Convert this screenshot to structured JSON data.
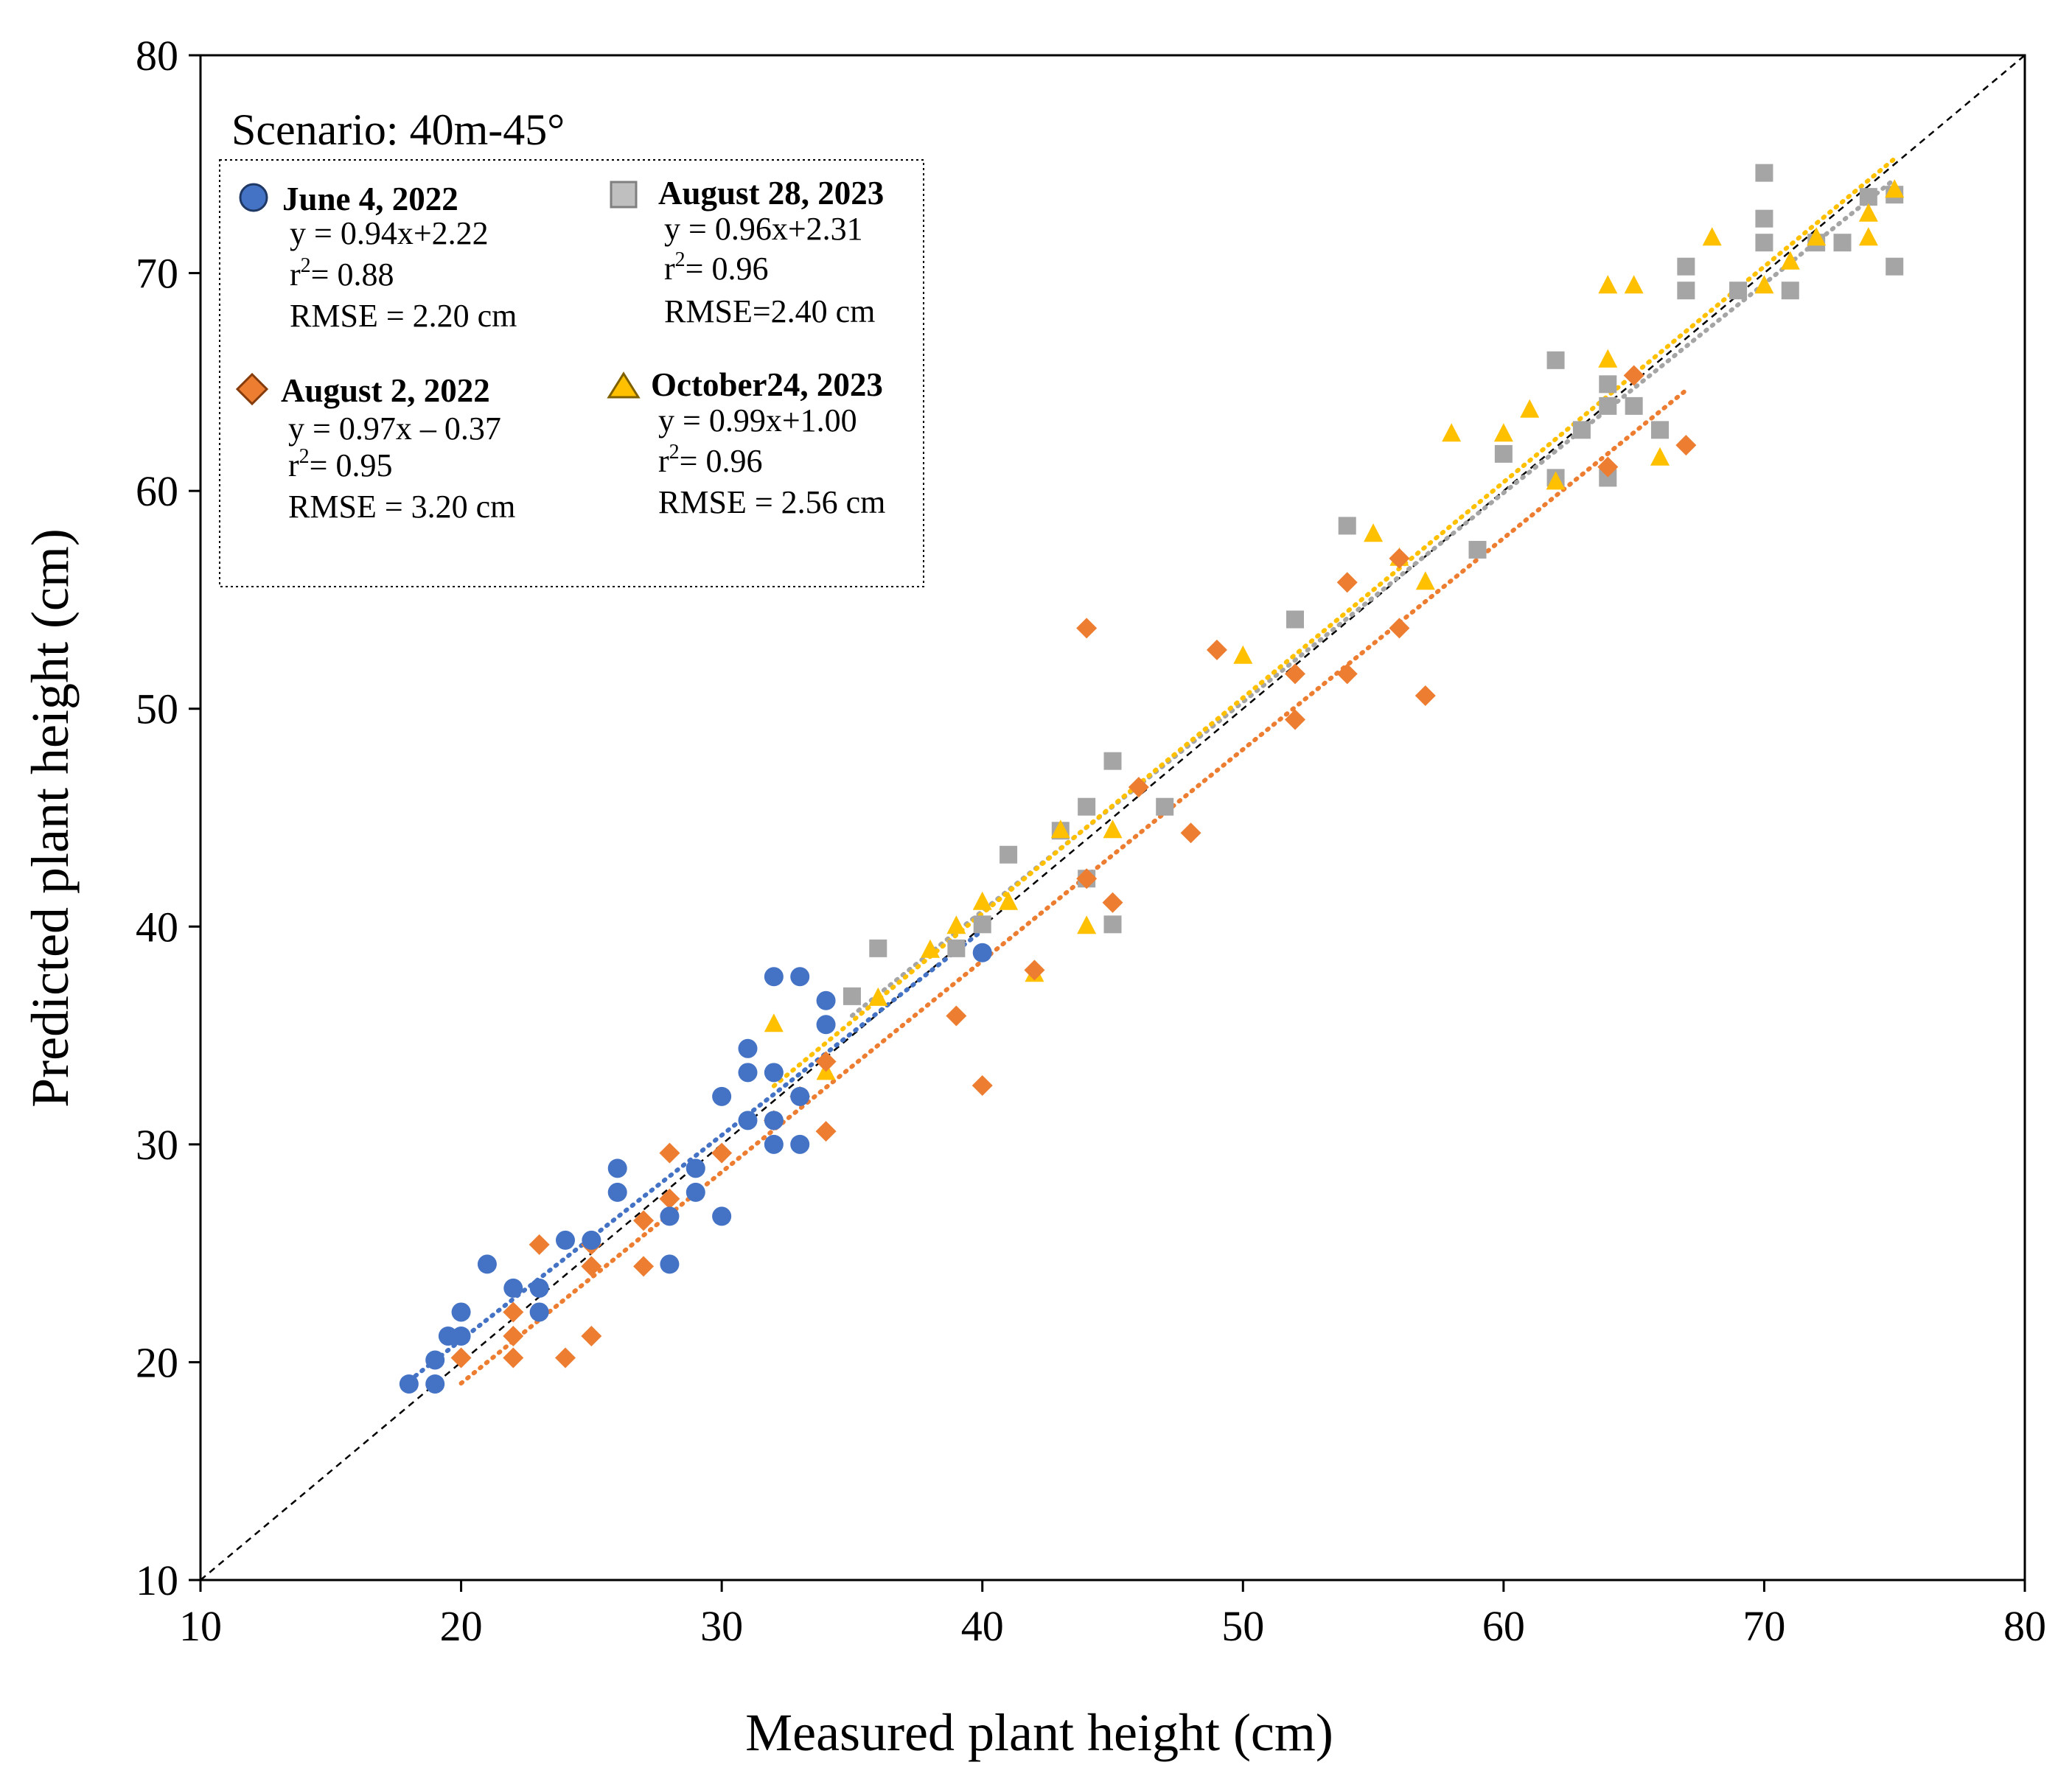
{
  "chart_data": {
    "type": "scatter",
    "title": "",
    "scenario": "Scenario: 40m-45°",
    "xlabel": "Measured plant height (cm)",
    "ylabel": "Predicted plant height (cm)",
    "xlim": [
      10,
      80
    ],
    "ylim": [
      10,
      80
    ],
    "xticks": [
      "10",
      "20",
      "30",
      "40",
      "50",
      "60",
      "70",
      "80"
    ],
    "yticks": [
      "10",
      "20",
      "30",
      "40",
      "50",
      "60",
      "70",
      "80"
    ],
    "grid": false,
    "reference_line": {
      "name": "1:1 line",
      "x": [
        10,
        80
      ],
      "y": [
        10,
        80
      ],
      "color": "#000000"
    },
    "series": [
      {
        "name": "June 4, 2022",
        "marker": "circle",
        "color": "#4472C4",
        "equation": "y = 0.94x+2.22",
        "r2_label": "r",
        "r2_value": "= 0.88",
        "rmse": "RMSE = 2.20 cm",
        "fit": {
          "slope": 0.94,
          "intercept": 2.22,
          "x_range": [
            18,
            40
          ]
        },
        "points": [
          [
            18,
            19
          ],
          [
            19,
            19
          ],
          [
            19,
            20.1
          ],
          [
            19.5,
            21.2
          ],
          [
            20,
            21.2
          ],
          [
            20,
            22.3
          ],
          [
            21,
            24.5
          ],
          [
            22,
            23.4
          ],
          [
            23,
            23.4
          ],
          [
            23,
            22.3
          ],
          [
            24,
            25.6
          ],
          [
            25,
            25.6
          ],
          [
            26,
            27.8
          ],
          [
            26,
            28.9
          ],
          [
            28,
            24.5
          ],
          [
            28,
            26.7
          ],
          [
            29,
            27.8
          ],
          [
            29,
            28.9
          ],
          [
            30,
            26.7
          ],
          [
            30,
            32.2
          ],
          [
            31,
            31.1
          ],
          [
            31,
            33.3
          ],
          [
            31,
            34.4
          ],
          [
            32,
            30
          ],
          [
            32,
            31.1
          ],
          [
            32,
            33.3
          ],
          [
            32,
            37.7
          ],
          [
            33,
            30
          ],
          [
            33,
            32.2
          ],
          [
            33,
            37.7
          ],
          [
            34,
            35.5
          ],
          [
            34,
            36.6
          ],
          [
            40,
            38.8
          ]
        ]
      },
      {
        "name": "August 2, 2022",
        "marker": "diamond",
        "color": "#ED7D31",
        "equation": "y = 0.97x – 0.37",
        "r2_label": "r",
        "r2_value": "= 0.95",
        "rmse": "RMSE = 3.20 cm",
        "fit": {
          "slope": 0.97,
          "intercept": -0.37,
          "x_range": [
            20,
            67
          ]
        },
        "points": [
          [
            20,
            20.2
          ],
          [
            22,
            20.2
          ],
          [
            22,
            21.2
          ],
          [
            22,
            22.3
          ],
          [
            23,
            25.4
          ],
          [
            24,
            20.2
          ],
          [
            25,
            21.2
          ],
          [
            25,
            24.4
          ],
          [
            25,
            25.4
          ],
          [
            27,
            24.4
          ],
          [
            27,
            26.5
          ],
          [
            28,
            27.5
          ],
          [
            28,
            29.6
          ],
          [
            30,
            29.6
          ],
          [
            32,
            31.1
          ],
          [
            33,
            32.2
          ],
          [
            34,
            30.6
          ],
          [
            34,
            33.8
          ],
          [
            39,
            35.9
          ],
          [
            40,
            32.7
          ],
          [
            42,
            38
          ],
          [
            44,
            42.2
          ],
          [
            44,
            53.7
          ],
          [
            45,
            41.1
          ],
          [
            46,
            46.4
          ],
          [
            48,
            44.3
          ],
          [
            49,
            52.7
          ],
          [
            52,
            49.5
          ],
          [
            52,
            51.6
          ],
          [
            54,
            51.6
          ],
          [
            54,
            55.8
          ],
          [
            56,
            53.7
          ],
          [
            56,
            56.9
          ],
          [
            57,
            50.6
          ],
          [
            64,
            61.1
          ],
          [
            65,
            65.3
          ],
          [
            67,
            62.1
          ]
        ]
      },
      {
        "name": "August 28, 2023",
        "marker": "square",
        "color": "#A5A5A5",
        "equation": "y = 0.96x+2.31",
        "r2_label": "r",
        "r2_value": "= 0.96",
        "rmse": "RMSE=2.40 cm",
        "fit": {
          "slope": 0.96,
          "intercept": 2.31,
          "x_range": [
            35,
            75
          ]
        },
        "points": [
          [
            35,
            36.8
          ],
          [
            36,
            39
          ],
          [
            39,
            39
          ],
          [
            40,
            40.1
          ],
          [
            41,
            43.3
          ],
          [
            43,
            44.4
          ],
          [
            44,
            42.2
          ],
          [
            44,
            45.5
          ],
          [
            45,
            40.1
          ],
          [
            45,
            47.6
          ],
          [
            47,
            45.5
          ],
          [
            52,
            54.1
          ],
          [
            54,
            58.4
          ],
          [
            59,
            57.3
          ],
          [
            60,
            61.7
          ],
          [
            62,
            60.6
          ],
          [
            62,
            66
          ],
          [
            63,
            62.8
          ],
          [
            64,
            60.6
          ],
          [
            64,
            63.9
          ],
          [
            64,
            64.9
          ],
          [
            65,
            63.9
          ],
          [
            66,
            62.8
          ],
          [
            67,
            69.2
          ],
          [
            67,
            70.3
          ],
          [
            69,
            69.2
          ],
          [
            70,
            71.4
          ],
          [
            70,
            72.5
          ],
          [
            70,
            74.6
          ],
          [
            71,
            69.2
          ],
          [
            72,
            71.4
          ],
          [
            73,
            71.4
          ],
          [
            74,
            73.5
          ],
          [
            75,
            70.3
          ],
          [
            75,
            73.6
          ]
        ]
      },
      {
        "name": "October24, 2023",
        "marker": "triangle",
        "color": "#FFC000",
        "equation": "y = 0.99x+1.00",
        "r2_label": "r",
        "r2_value": "= 0.96",
        "rmse": "RMSE = 2.56 cm",
        "fit": {
          "slope": 0.99,
          "intercept": 1.0,
          "x_range": [
            32,
            75
          ]
        },
        "points": [
          [
            32,
            35.5
          ],
          [
            34,
            33.3
          ],
          [
            36,
            36.7
          ],
          [
            38,
            38.9
          ],
          [
            39,
            40
          ],
          [
            40,
            41.1
          ],
          [
            41,
            41.1
          ],
          [
            42,
            37.8
          ],
          [
            43,
            44.4
          ],
          [
            44,
            40
          ],
          [
            45,
            44.4
          ],
          [
            50,
            52.4
          ],
          [
            55,
            58
          ],
          [
            56,
            56.9
          ],
          [
            57,
            55.8
          ],
          [
            58,
            62.6
          ],
          [
            60,
            62.6
          ],
          [
            61,
            63.7
          ],
          [
            62,
            60.4
          ],
          [
            64,
            66
          ],
          [
            64,
            69.4
          ],
          [
            65,
            69.4
          ],
          [
            66,
            61.5
          ],
          [
            68,
            71.6
          ],
          [
            70,
            69.4
          ],
          [
            71,
            70.5
          ],
          [
            72,
            71.6
          ],
          [
            74,
            71.6
          ],
          [
            74,
            72.7
          ],
          [
            75,
            73.8
          ]
        ]
      }
    ]
  }
}
